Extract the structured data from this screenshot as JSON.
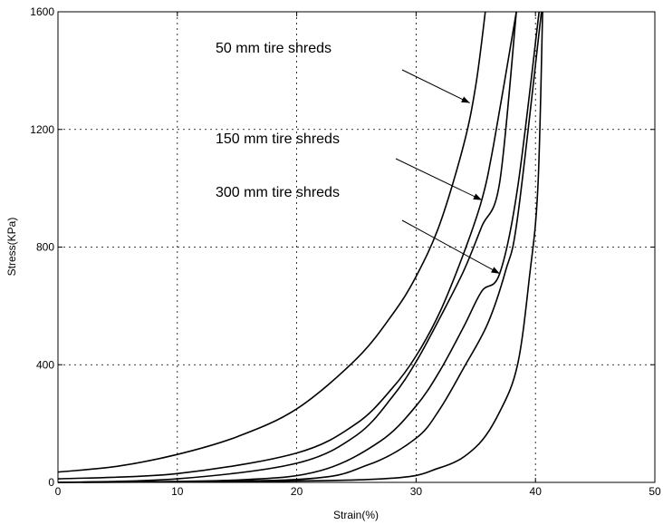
{
  "chart_data": {
    "type": "line",
    "title": "",
    "xlabel": "Strain(%)",
    "ylabel": "Stress(KPa)",
    "xlim": [
      0,
      50
    ],
    "ylim": [
      0,
      1600
    ],
    "xticks": [
      0,
      10,
      20,
      30,
      40,
      50
    ],
    "yticks": [
      0,
      400,
      800,
      1200,
      1600
    ],
    "grid": true,
    "annotations": [
      {
        "text": "50 mm tire shreds",
        "arrow_to": [
          34.5,
          1290
        ]
      },
      {
        "text": "150 mm tire shreds",
        "arrow_to": [
          35.5,
          960
        ]
      },
      {
        "text": "300 mm tire shreds",
        "arrow_to": [
          37.0,
          710
        ]
      }
    ],
    "series": [
      {
        "values": [
          [
            0,
            35
          ],
          [
            5,
            55
          ],
          [
            10,
            95
          ],
          [
            15,
            155
          ],
          [
            20,
            250
          ],
          [
            25,
            420
          ],
          [
            28,
            570
          ],
          [
            30,
            700
          ],
          [
            32,
            880
          ],
          [
            34,
            1150
          ],
          [
            35,
            1350
          ],
          [
            35.8,
            1600
          ]
        ]
      },
      {
        "values": [
          [
            0,
            12
          ],
          [
            10,
            30
          ],
          [
            20,
            100
          ],
          [
            25,
            200
          ],
          [
            28,
            320
          ],
          [
            30,
            430
          ],
          [
            32,
            580
          ],
          [
            34,
            780
          ],
          [
            35.5,
            960
          ],
          [
            36.5,
            1150
          ],
          [
            38.4,
            1600
          ]
        ]
      },
      {
        "values": [
          [
            0,
            0
          ],
          [
            10,
            12
          ],
          [
            20,
            65
          ],
          [
            25,
            160
          ],
          [
            28,
            290
          ],
          [
            30,
            410
          ],
          [
            32,
            560
          ],
          [
            34,
            720
          ],
          [
            35.5,
            870
          ],
          [
            37,
            1020
          ],
          [
            38.4,
            1600
          ]
        ]
      },
      {
        "values": [
          [
            0,
            0
          ],
          [
            15,
            8
          ],
          [
            22,
            40
          ],
          [
            27,
            140
          ],
          [
            30,
            260
          ],
          [
            32,
            380
          ],
          [
            34,
            530
          ],
          [
            35.5,
            650
          ],
          [
            37,
            710
          ],
          [
            38.5,
            1000
          ],
          [
            40.3,
            1600
          ]
        ]
      },
      {
        "values": [
          [
            0,
            0
          ],
          [
            20,
            10
          ],
          [
            26,
            60
          ],
          [
            30,
            150
          ],
          [
            32,
            250
          ],
          [
            34,
            390
          ],
          [
            36,
            540
          ],
          [
            37.5,
            720
          ],
          [
            38.5,
            900
          ],
          [
            40.5,
            1600
          ]
        ]
      },
      {
        "values": [
          [
            2,
            0
          ],
          [
            26,
            10
          ],
          [
            32,
            50
          ],
          [
            35,
            120
          ],
          [
            37,
            240
          ],
          [
            38.5,
            400
          ],
          [
            39.5,
            700
          ],
          [
            40.2,
            1000
          ],
          [
            40.6,
            1600
          ]
        ]
      }
    ]
  }
}
